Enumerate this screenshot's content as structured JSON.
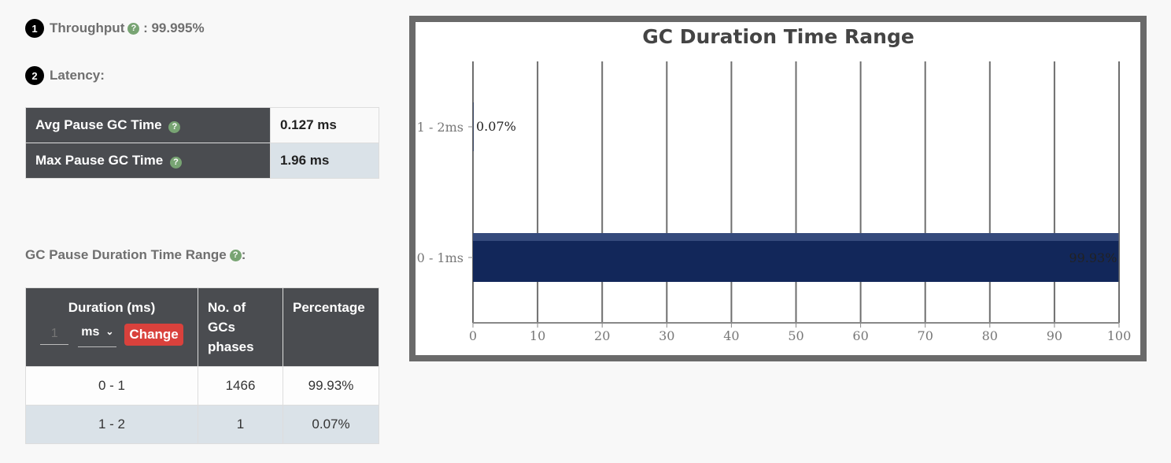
{
  "throughput": {
    "number": "1",
    "label": "Throughput",
    "help": "?",
    "separator": " : ",
    "value": "99.995%"
  },
  "latency": {
    "number": "2",
    "label": "Latency:",
    "rows": [
      {
        "label": "Avg Pause GC Time",
        "help": "?",
        "value": "0.127 ms"
      },
      {
        "label": "Max Pause GC Time",
        "help": "?",
        "value": "1.96 ms"
      }
    ]
  },
  "pause_range": {
    "label": "GC Pause Duration Time Range",
    "help": "?",
    "suffix": ":",
    "headers": {
      "duration": "Duration (ms)",
      "count": "No. of GCs phases",
      "percentage": "Percentage"
    },
    "unit_input": {
      "placeholder": "1"
    },
    "unit_select": {
      "value": "ms",
      "chevron": "⌄"
    },
    "change_button": "Change",
    "rows": [
      {
        "duration": "0 - 1",
        "count": "1466",
        "percentage": "99.93%"
      },
      {
        "duration": "1 - 2",
        "count": "1",
        "percentage": "0.07%"
      }
    ]
  },
  "colors": {
    "header_bg": "#4a4c50",
    "bar": "#12275a",
    "help": "#78a473",
    "button": "#d9413c",
    "row_alt": "#dae2e8"
  },
  "chart_data": {
    "type": "bar",
    "orientation": "horizontal",
    "title": "GC Duration Time Range",
    "categories": [
      "1 - 2ms",
      "0 - 1ms"
    ],
    "values": [
      0.07,
      99.93
    ],
    "data_labels": [
      "0.07%",
      "99.93%"
    ],
    "xlim": [
      0,
      100
    ],
    "xticks": [
      "0",
      "10",
      "20",
      "30",
      "40",
      "50",
      "60",
      "70",
      "80",
      "90",
      "100"
    ],
    "grid": true,
    "legend": "none"
  }
}
